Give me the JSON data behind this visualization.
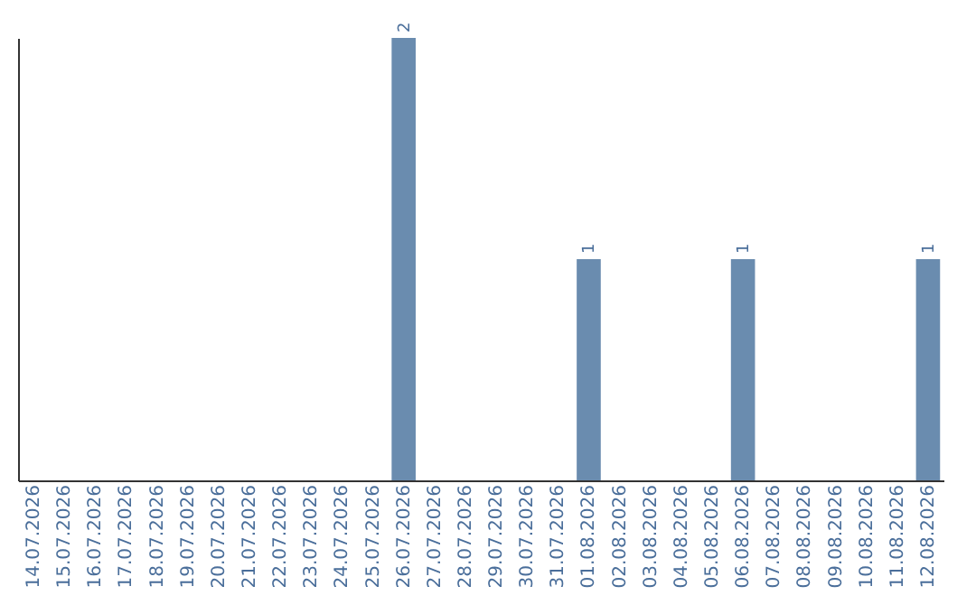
{
  "chart_data": {
    "type": "bar",
    "categories": [
      "14.07.2026",
      "15.07.2026",
      "16.07.2026",
      "17.07.2026",
      "18.07.2026",
      "19.07.2026",
      "20.07.2026",
      "21.07.2026",
      "22.07.2026",
      "23.07.2026",
      "24.07.2026",
      "25.07.2026",
      "26.07.2026",
      "27.07.2026",
      "28.07.2026",
      "29.07.2026",
      "30.07.2026",
      "31.07.2026",
      "01.08.2026",
      "02.08.2026",
      "03.08.2026",
      "04.08.2026",
      "05.08.2026",
      "06.08.2026",
      "07.08.2026",
      "08.08.2026",
      "09.08.2026",
      "10.08.2026",
      "11.08.2026",
      "12.08.2026"
    ],
    "values": [
      null,
      null,
      null,
      null,
      null,
      null,
      null,
      null,
      null,
      null,
      null,
      null,
      2,
      null,
      null,
      null,
      null,
      null,
      1,
      null,
      null,
      null,
      null,
      1,
      null,
      null,
      null,
      null,
      null,
      1
    ],
    "value_labels": [
      null,
      null,
      null,
      null,
      null,
      null,
      null,
      null,
      null,
      null,
      null,
      null,
      "2",
      null,
      null,
      null,
      null,
      null,
      "1",
      null,
      null,
      null,
      null,
      "1",
      null,
      null,
      null,
      null,
      null,
      "1"
    ],
    "color": "#6a8caf",
    "tick_labels": "x",
    "grid": false
  }
}
